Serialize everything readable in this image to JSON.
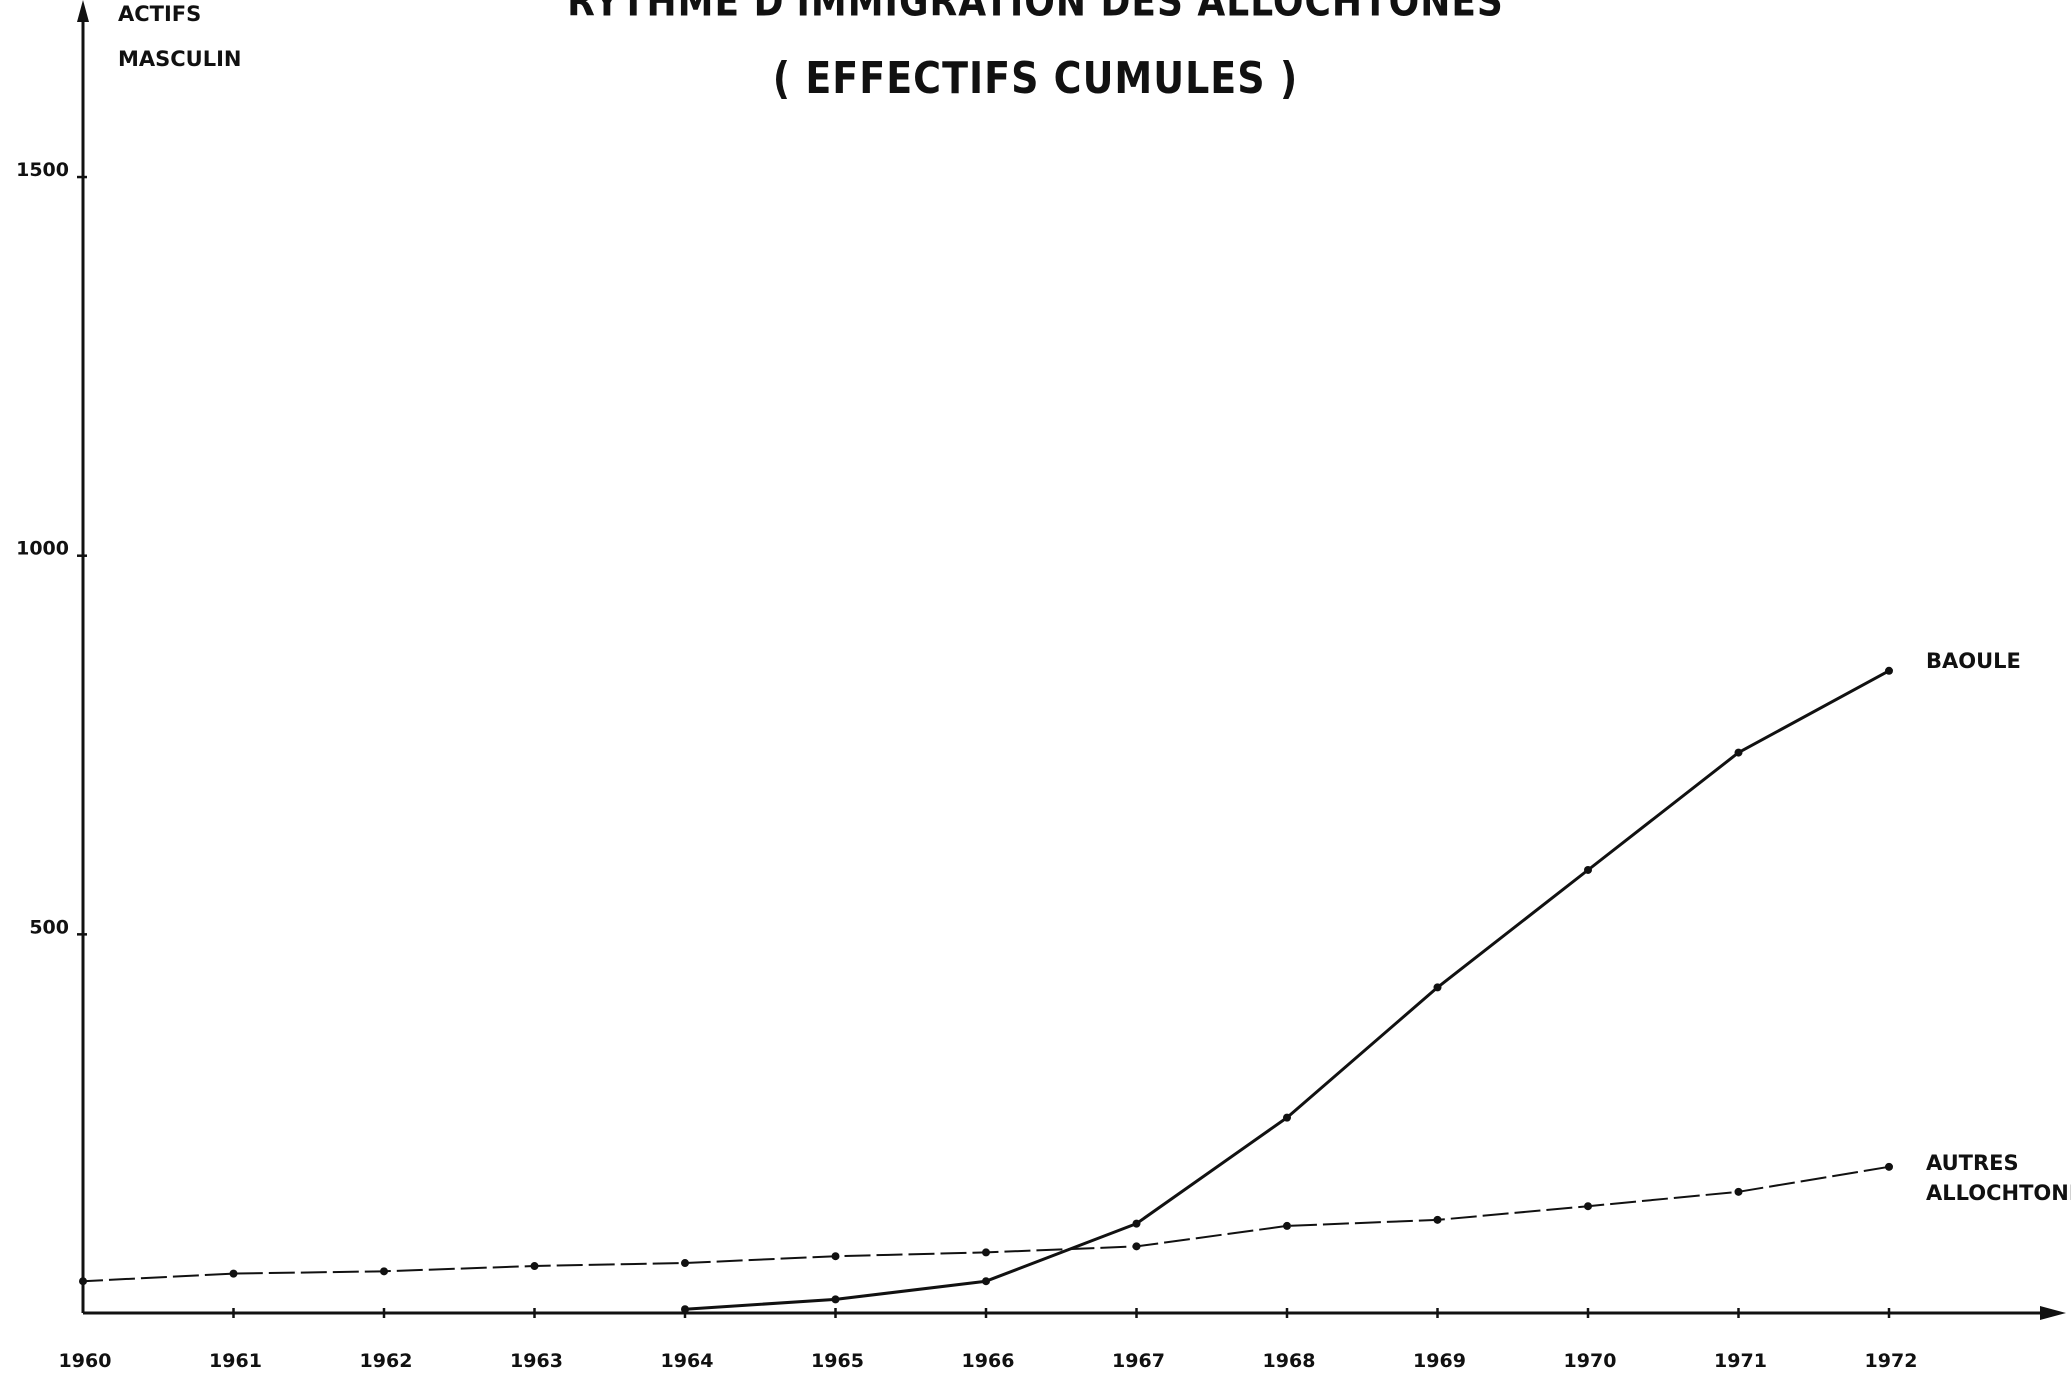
{
  "chart_data": {
    "type": "line",
    "title": "RYTHME D'IMMIGRATION DES ALLOCHTONES",
    "subtitle": "( EFFECTIFS CUMULES )",
    "ylabel_lines": [
      "ACTIFS",
      "MASCULIN"
    ],
    "xlabel": "",
    "xlim": [
      1960,
      1972
    ],
    "ylim": [
      0,
      1500
    ],
    "yticks": [
      500,
      1000,
      1500
    ],
    "ytick_labels": [
      "500",
      "1000",
      "1500"
    ],
    "categories": [
      "1960",
      "1961",
      "1962",
      "1963",
      "1964",
      "1965",
      "1966",
      "1967",
      "1968",
      "1969",
      "1970",
      "1971",
      "1972"
    ],
    "grid": false,
    "series": [
      {
        "name": "BAOULE",
        "style": "solid",
        "x": [
          1964,
          1965,
          1966,
          1967,
          1968,
          1969,
          1970,
          1971,
          1972
        ],
        "values": [
          5,
          18,
          42,
          118,
          258,
          430,
          585,
          740,
          848
        ]
      },
      {
        "name_lines": [
          "AUTRES",
          "ALLOCHTONES"
        ],
        "style": "dashed",
        "x": [
          1960,
          1961,
          1962,
          1963,
          1964,
          1965,
          1966,
          1967,
          1968,
          1969,
          1970,
          1971,
          1972
        ],
        "values": [
          42,
          52,
          55,
          62,
          66,
          75,
          80,
          88,
          115,
          123,
          141,
          160,
          193
        ]
      }
    ],
    "colors": {
      "ink": "#111111",
      "background": "#ffffff"
    }
  }
}
